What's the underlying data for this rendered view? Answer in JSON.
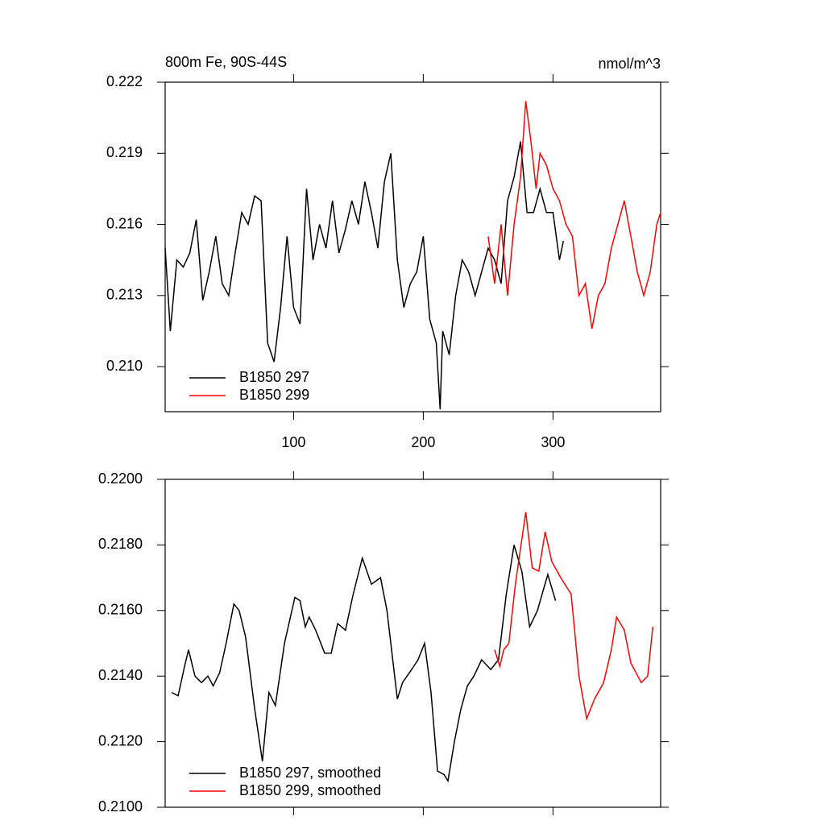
{
  "chart_data": [
    {
      "type": "line",
      "title": "800m Fe, 90S-44S",
      "units": "nmol/m^3",
      "xlim": [
        1,
        383
      ],
      "ylim": [
        0.2081,
        0.222
      ],
      "xticks": [
        100,
        200,
        300
      ],
      "yticks": [
        {
          "value": 0.21,
          "label": "0.210"
        },
        0.213,
        0.216,
        0.219,
        0.222
      ],
      "show_xtick_labels": true,
      "legend": "lower left",
      "series": [
        {
          "name": "B1850 297",
          "color": "#000000",
          "x": [
            1,
            5,
            10,
            15,
            20,
            25,
            30,
            35,
            40,
            45,
            50,
            55,
            60,
            65,
            70,
            75,
            80,
            85,
            90,
            95,
            100,
            105,
            110,
            115,
            120,
            125,
            130,
            135,
            140,
            145,
            150,
            155,
            160,
            165,
            170,
            175,
            180,
            185,
            190,
            195,
            200,
            205,
            210,
            213,
            215,
            220,
            225,
            230,
            235,
            240,
            245,
            250,
            255,
            260,
            265,
            270,
            275,
            280,
            285,
            290,
            295,
            300,
            305,
            308
          ],
          "values": [
            0.215,
            0.2115,
            0.2145,
            0.2142,
            0.2148,
            0.2162,
            0.2128,
            0.214,
            0.2155,
            0.2135,
            0.213,
            0.2148,
            0.2165,
            0.216,
            0.2172,
            0.217,
            0.211,
            0.2102,
            0.2125,
            0.2155,
            0.2125,
            0.2118,
            0.2175,
            0.2145,
            0.216,
            0.215,
            0.217,
            0.2148,
            0.2158,
            0.217,
            0.216,
            0.2178,
            0.2165,
            0.215,
            0.2178,
            0.219,
            0.2145,
            0.2125,
            0.2135,
            0.214,
            0.2155,
            0.212,
            0.211,
            0.2082,
            0.2115,
            0.2105,
            0.213,
            0.2145,
            0.214,
            0.213,
            0.214,
            0.215,
            0.2145,
            0.2135,
            0.217,
            0.218,
            0.2195,
            0.2165,
            0.2165,
            0.2175,
            0.2165,
            0.2165,
            0.2145,
            0.2153
          ]
        },
        {
          "name": "B1850 299",
          "color": "#ff0000",
          "x": [
            250,
            255,
            260,
            265,
            270,
            275,
            279,
            283,
            287,
            290,
            295,
            300,
            305,
            310,
            315,
            320,
            325,
            330,
            335,
            340,
            345,
            350,
            355,
            360,
            365,
            370,
            375,
            380,
            383
          ],
          "values": [
            0.2155,
            0.2135,
            0.216,
            0.213,
            0.216,
            0.218,
            0.2212,
            0.2195,
            0.2175,
            0.219,
            0.2185,
            0.2175,
            0.217,
            0.216,
            0.2155,
            0.213,
            0.2135,
            0.2116,
            0.213,
            0.2135,
            0.215,
            0.216,
            0.217,
            0.2155,
            0.214,
            0.213,
            0.214,
            0.216,
            0.2165
          ]
        }
      ]
    },
    {
      "type": "line",
      "xlim": [
        1,
        383
      ],
      "ylim": [
        0.21,
        0.22
      ],
      "xticks": [
        100,
        200,
        300
      ],
      "yticks": [
        {
          "value": 0.21,
          "label": "0.2100"
        },
        {
          "value": 0.212,
          "label": "0.2120"
        },
        {
          "value": 0.214,
          "label": "0.2140"
        },
        {
          "value": 0.216,
          "label": "0.2160"
        },
        {
          "value": 0.218,
          "label": "0.2180"
        },
        {
          "value": 0.22,
          "label": "0.2200"
        }
      ],
      "show_xtick_labels": false,
      "legend": "lower left",
      "series": [
        {
          "name": "B1850 297, smoothed",
          "color": "#000000",
          "x": [
            6,
            11,
            16,
            19,
            24,
            29,
            34,
            38,
            43,
            48,
            54,
            58,
            63,
            70,
            76,
            81,
            86,
            93,
            101,
            105,
            109,
            112,
            117,
            124,
            129,
            134,
            140,
            146,
            153,
            160,
            167,
            172,
            180,
            184,
            191,
            196,
            201,
            206,
            211,
            216,
            219,
            224,
            229,
            234,
            239,
            245,
            252,
            258,
            264,
            270,
            276,
            282,
            288,
            296,
            302
          ],
          "values": [
            0.2135,
            0.2134,
            0.2143,
            0.2148,
            0.214,
            0.2138,
            0.214,
            0.2137,
            0.2141,
            0.215,
            0.2162,
            0.216,
            0.2152,
            0.213,
            0.2114,
            0.2135,
            0.2131,
            0.215,
            0.2164,
            0.2163,
            0.2155,
            0.2158,
            0.2154,
            0.2147,
            0.2147,
            0.2156,
            0.2154,
            0.2165,
            0.2176,
            0.2168,
            0.217,
            0.216,
            0.2133,
            0.2138,
            0.2142,
            0.2145,
            0.215,
            0.2135,
            0.2111,
            0.211,
            0.2108,
            0.212,
            0.213,
            0.2137,
            0.214,
            0.2145,
            0.2142,
            0.2145,
            0.2165,
            0.218,
            0.2172,
            0.2155,
            0.216,
            0.2171,
            0.2163
          ]
        },
        {
          "name": "B1850 299, smoothed",
          "color": "#ff0000",
          "x": [
            255,
            259,
            262,
            266,
            271,
            279,
            284,
            289,
            294,
            299,
            306,
            314,
            320,
            326,
            332,
            339,
            345,
            349,
            355,
            360,
            368,
            373,
            377
          ],
          "values": [
            0.2148,
            0.2143,
            0.2148,
            0.215,
            0.2168,
            0.219,
            0.2173,
            0.2172,
            0.2184,
            0.2175,
            0.217,
            0.2165,
            0.214,
            0.2127,
            0.2133,
            0.2138,
            0.2148,
            0.2158,
            0.2154,
            0.2144,
            0.2138,
            0.214,
            0.2155
          ]
        }
      ]
    }
  ]
}
